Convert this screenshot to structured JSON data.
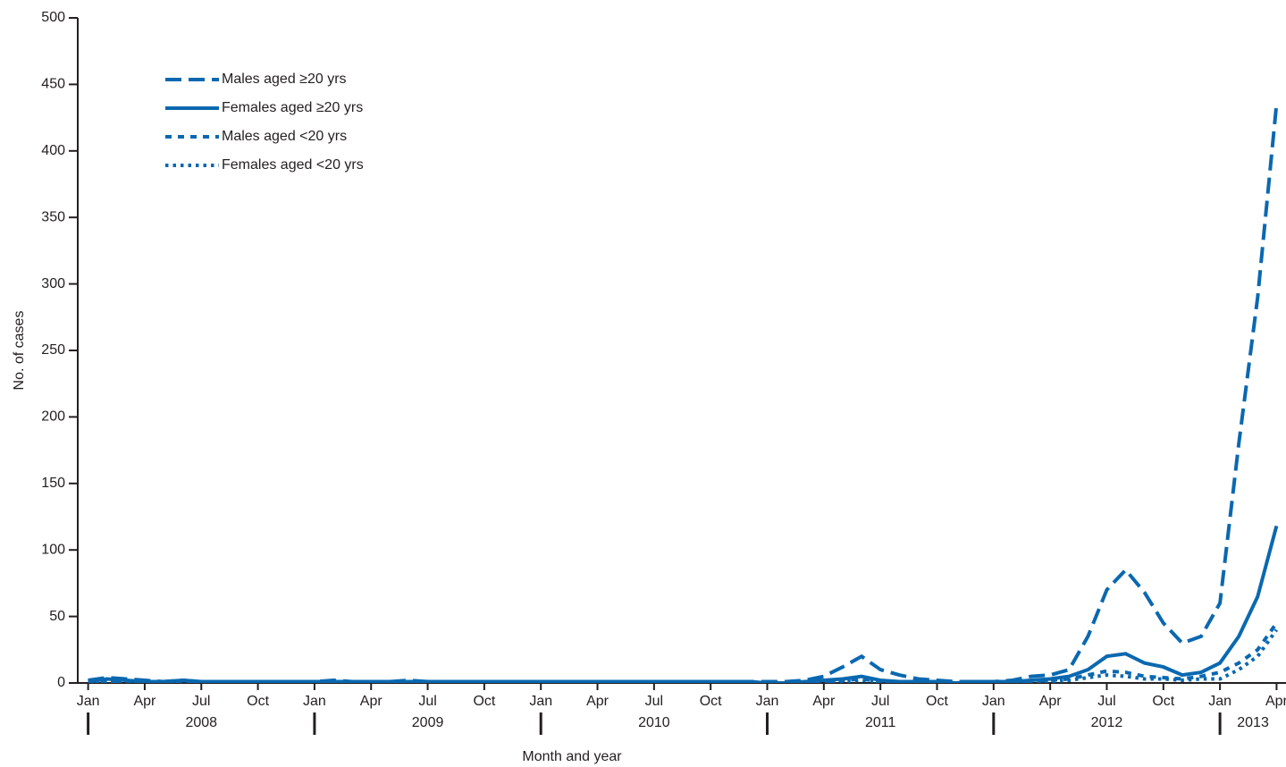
{
  "chart_data": {
    "type": "line",
    "x_label": "Month and year",
    "y_label": "No. of cases",
    "x": [
      0,
      1,
      2,
      3,
      4,
      5,
      6,
      7,
      8,
      9,
      10,
      11,
      12,
      13,
      14,
      15,
      16,
      17,
      18,
      19,
      20,
      21,
      22,
      23,
      24,
      25,
      26,
      27,
      28,
      29,
      30,
      31,
      32,
      33,
      34,
      35,
      36,
      37,
      38,
      39,
      40,
      41,
      42,
      43,
      44,
      45,
      46,
      47,
      48,
      49,
      50,
      51,
      52,
      53,
      54,
      55,
      56,
      57,
      58,
      59,
      60,
      61,
      62,
      63
    ],
    "xlim": [
      -0.55,
      63.5
    ],
    "xticks": [
      {
        "value": 0,
        "label": "Jan"
      },
      {
        "value": 3,
        "label": "Apr"
      },
      {
        "value": 6,
        "label": "Jul"
      },
      {
        "value": 9,
        "label": "Oct"
      },
      {
        "value": 12,
        "label": "Jan"
      },
      {
        "value": 15,
        "label": "Apr"
      },
      {
        "value": 18,
        "label": "Jul"
      },
      {
        "value": 21,
        "label": "Oct"
      },
      {
        "value": 24,
        "label": "Jan"
      },
      {
        "value": 27,
        "label": "Apr"
      },
      {
        "value": 30,
        "label": "Jul"
      },
      {
        "value": 33,
        "label": "Oct"
      },
      {
        "value": 36,
        "label": "Jan"
      },
      {
        "value": 39,
        "label": "Apr"
      },
      {
        "value": 42,
        "label": "Jul"
      },
      {
        "value": 45,
        "label": "Oct"
      },
      {
        "value": 48,
        "label": "Jan"
      },
      {
        "value": 51,
        "label": "Apr"
      },
      {
        "value": 54,
        "label": "Jul"
      },
      {
        "value": 57,
        "label": "Oct"
      },
      {
        "value": 60,
        "label": "Jan"
      },
      {
        "value": 63,
        "label": "Apr"
      }
    ],
    "year_groups": [
      {
        "value": 0,
        "label": "2008"
      },
      {
        "value": 12,
        "label": "2009"
      },
      {
        "value": 24,
        "label": "2010"
      },
      {
        "value": 36,
        "label": "2011"
      },
      {
        "value": 48,
        "label": "2012"
      },
      {
        "value": 60,
        "label": "2013"
      }
    ],
    "ylim": [
      0,
      500
    ],
    "yticks": [
      0,
      50,
      100,
      150,
      200,
      250,
      300,
      350,
      400,
      450,
      500
    ],
    "legend": "upper left",
    "series": [
      {
        "name": "Males aged ≥20 yrs",
        "color": "#0a68b0",
        "line_style": "dashed",
        "values": [
          2,
          4,
          3,
          2,
          1,
          2,
          1,
          1,
          1,
          1,
          1,
          1,
          1,
          2,
          1,
          1,
          1,
          2,
          1,
          1,
          1,
          1,
          1,
          1,
          1,
          1,
          1,
          1,
          1,
          1,
          1,
          1,
          1,
          1,
          1,
          1,
          1,
          1,
          2,
          5,
          12,
          20,
          10,
          6,
          3,
          2,
          1,
          1,
          1,
          2,
          5,
          6,
          10,
          35,
          70,
          85,
          68,
          45,
          30,
          35,
          60,
          180,
          290,
          435
        ]
      },
      {
        "name": "Females aged ≥20 yrs",
        "color": "#0a68b0",
        "line_style": "solid",
        "values": [
          1,
          3,
          2,
          1,
          1,
          2,
          1,
          1,
          1,
          1,
          1,
          1,
          1,
          1,
          1,
          1,
          1,
          1,
          1,
          1,
          1,
          1,
          1,
          1,
          1,
          1,
          1,
          1,
          1,
          1,
          1,
          1,
          1,
          1,
          1,
          1,
          0,
          0,
          1,
          2,
          3,
          5,
          2,
          1,
          1,
          1,
          0,
          1,
          1,
          1,
          2,
          3,
          5,
          10,
          20,
          22,
          15,
          12,
          6,
          8,
          15,
          35,
          65,
          118
        ]
      },
      {
        "name": "Males aged <20 yrs",
        "color": "#0a68b0",
        "line_style": "short-dashed",
        "values": [
          1,
          1,
          1,
          1,
          1,
          1,
          1,
          1,
          1,
          1,
          1,
          1,
          1,
          1,
          1,
          1,
          1,
          1,
          1,
          1,
          1,
          1,
          1,
          1,
          1,
          1,
          1,
          1,
          1,
          1,
          1,
          1,
          1,
          1,
          1,
          1,
          0,
          0,
          0,
          1,
          2,
          3,
          1,
          1,
          0,
          0,
          0,
          0,
          0,
          1,
          1,
          2,
          3,
          6,
          9,
          8,
          5,
          4,
          3,
          5,
          8,
          15,
          25,
          45
        ]
      },
      {
        "name": "Females aged <20 yrs",
        "color": "#0a68b0",
        "line_style": "dotted",
        "values": [
          0,
          1,
          1,
          0,
          0,
          1,
          0,
          0,
          0,
          0,
          0,
          0,
          0,
          0,
          0,
          0,
          0,
          0,
          0,
          0,
          0,
          0,
          0,
          0,
          0,
          0,
          0,
          0,
          0,
          0,
          0,
          0,
          0,
          0,
          0,
          0,
          0,
          0,
          0,
          0,
          1,
          2,
          1,
          0,
          0,
          0,
          0,
          0,
          0,
          0,
          1,
          1,
          2,
          4,
          6,
          5,
          3,
          3,
          2,
          3,
          3,
          10,
          20,
          40
        ]
      }
    ]
  }
}
